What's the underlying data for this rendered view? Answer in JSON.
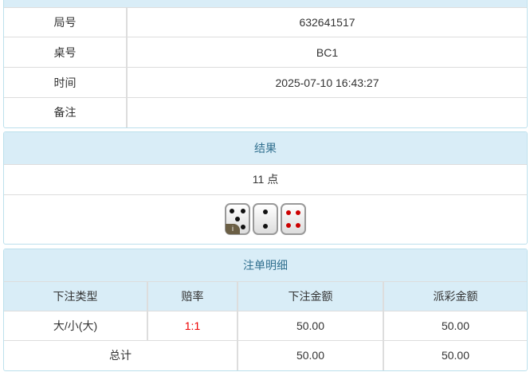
{
  "info": {
    "rows": [
      {
        "label": "局号",
        "value": "632641517"
      },
      {
        "label": "桌号",
        "value": "BC1"
      },
      {
        "label": "时间",
        "value": "2025-07-10 16:43:27"
      },
      {
        "label": "备注",
        "value": ""
      }
    ]
  },
  "result": {
    "title": "结果",
    "points": "11 点",
    "dice": [
      5,
      2,
      4
    ],
    "dice_colors": [
      "black",
      "black",
      "red"
    ],
    "badge": "i"
  },
  "bets": {
    "title": "注单明细",
    "headers": [
      "下注类型",
      "赔率",
      "下注金额",
      "派彩金额"
    ],
    "rows": [
      {
        "type": "大/小(大)",
        "odds": "1:1",
        "amount": "50.00",
        "payout": "50.00"
      }
    ],
    "total": {
      "label": "总计",
      "amount": "50.00",
      "payout": "50.00"
    }
  },
  "colors": {
    "header_bg": "#d9edf7",
    "odds": "#ee0000"
  }
}
